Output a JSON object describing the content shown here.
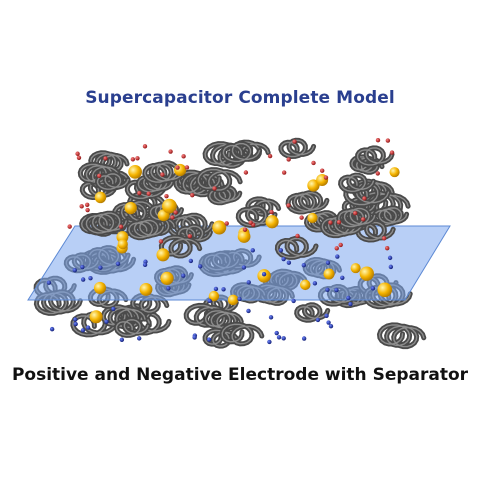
{
  "title": "Supercapacitor Complete Model",
  "caption": "Positive and Negative Electrode with Separator",
  "colors": {
    "title": "#2a3f8f",
    "caption": "#111111",
    "separator": "#6f9fe6",
    "carbon_coil": "#4a4a4a",
    "anion": "#b71c1c",
    "cation": "#1a2fa0",
    "solvent_ion": "#f5b400"
  },
  "parts": [
    "positive-electrode",
    "separator",
    "negative-electrode"
  ]
}
